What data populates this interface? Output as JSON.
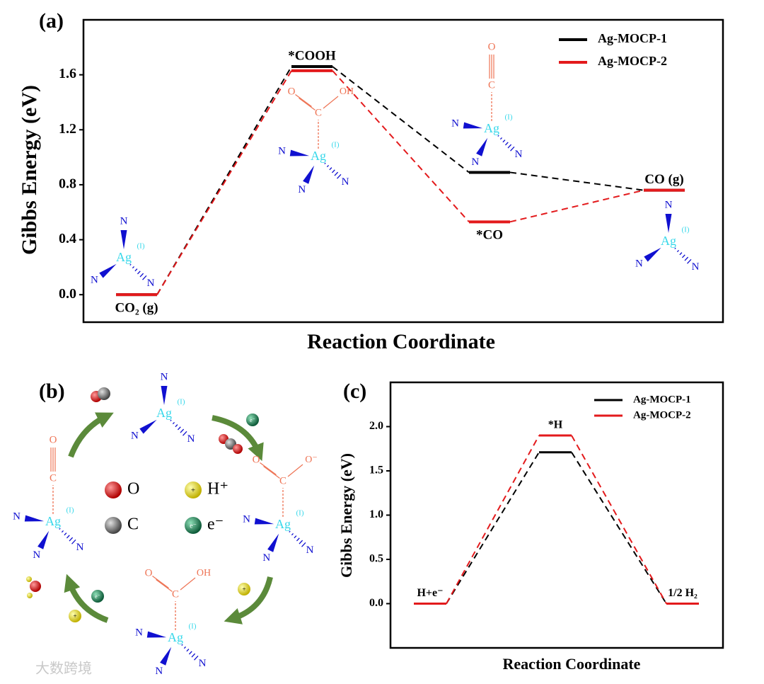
{
  "chart_data": [
    {
      "type": "line",
      "panel_label": "(a)",
      "xlabel": "Reaction Coordinate",
      "ylabel": "Gibbs Energy (eV)",
      "categories": [
        "CO₂ (g)",
        "*COOH",
        "*CO",
        "CO (g)"
      ],
      "series": [
        {
          "name": "Ag-MOCP-1",
          "color": "#000000",
          "values": [
            0,
            1.66,
            0.89,
            0.76
          ]
        },
        {
          "name": "Ag-MOCP-2",
          "color": "#e31a1c",
          "values": [
            0,
            1.63,
            0.53,
            0.76
          ]
        }
      ],
      "ylim": [
        -0.2,
        2.0
      ],
      "yticks": [
        {
          "value": 0,
          "label": "0.0"
        },
        {
          "value": 0.4,
          "label": "0.4"
        },
        {
          "value": 0.8,
          "label": "0.8"
        },
        {
          "value": 1.2,
          "label": "1.2"
        },
        {
          "value": 1.6,
          "label": "1.6"
        }
      ],
      "legend": "upper right"
    },
    {
      "type": "line",
      "panel_label": "(c)",
      "xlabel": "Reaction Coordinate",
      "ylabel": "Gibbs Energy (eV)",
      "categories": [
        "H+e⁻",
        "*H",
        "1/2 H₂"
      ],
      "series": [
        {
          "name": "Ag-MOCP-1",
          "color": "#000000",
          "values": [
            0,
            1.71,
            0
          ]
        },
        {
          "name": "Ag-MOCP-2",
          "color": "#e31a1c",
          "values": [
            0,
            1.9,
            0
          ]
        }
      ],
      "ylim": [
        -0.5,
        2.5
      ],
      "yticks": [
        {
          "value": 0,
          "label": "0.0"
        },
        {
          "value": 0.5,
          "label": "0.5"
        },
        {
          "value": 1,
          "label": "1.0"
        },
        {
          "value": 1.5,
          "label": "1.5"
        },
        {
          "value": 2,
          "label": "2.0"
        }
      ],
      "legend": "upper right"
    }
  ],
  "structures": {
    "metal": "Ag",
    "oxidation": "(I)",
    "ligand": "N",
    "carbon": "C",
    "oxygen": "O",
    "hydroxyl": "OH",
    "oxide_anion": "O⁻"
  },
  "scheme": {
    "panel_label": "(b)",
    "legend": [
      {
        "label": "O",
        "color": "#e01010"
      },
      {
        "label": "H⁺",
        "color": "#f0e020"
      },
      {
        "label": "C",
        "color": "#7a7a7a"
      },
      {
        "label": "e⁻",
        "color": "#1f8a5a"
      }
    ],
    "proton_sign": "+",
    "electron_sign": "e⁻"
  },
  "watermark": "大数跨境"
}
